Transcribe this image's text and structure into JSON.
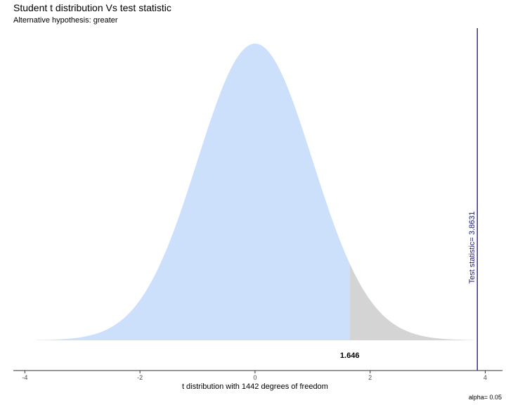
{
  "chart_data": {
    "type": "area",
    "title": "Student t distribution Vs test statistic",
    "subtitle": "Alternative hypothesis: greater",
    "xlabel": "t distribution with 1442 degrees of freedom",
    "ylabel": "",
    "caption": "alpha= 0.05",
    "degrees_of_freedom": 1442,
    "x_range": [
      -3.8,
      3.8
    ],
    "xlim": [
      -4.2,
      4.3
    ],
    "x_ticks": [
      -4,
      -2,
      0,
      2,
      4
    ],
    "x_tick_labels": [
      "-4",
      "-2",
      "0",
      "2",
      "4"
    ],
    "critical_value": 1.646,
    "critical_label": "1.646",
    "test_statistic": 3.8631,
    "test_statistic_label": "Test statistic= 3.8631",
    "alpha": 0.05,
    "grid": false,
    "colors": {
      "acceptance_fill": "#cce0fc",
      "rejection_fill": "#d4d4d4",
      "test_line": "#3b2d8f",
      "axis": "#333333"
    }
  }
}
